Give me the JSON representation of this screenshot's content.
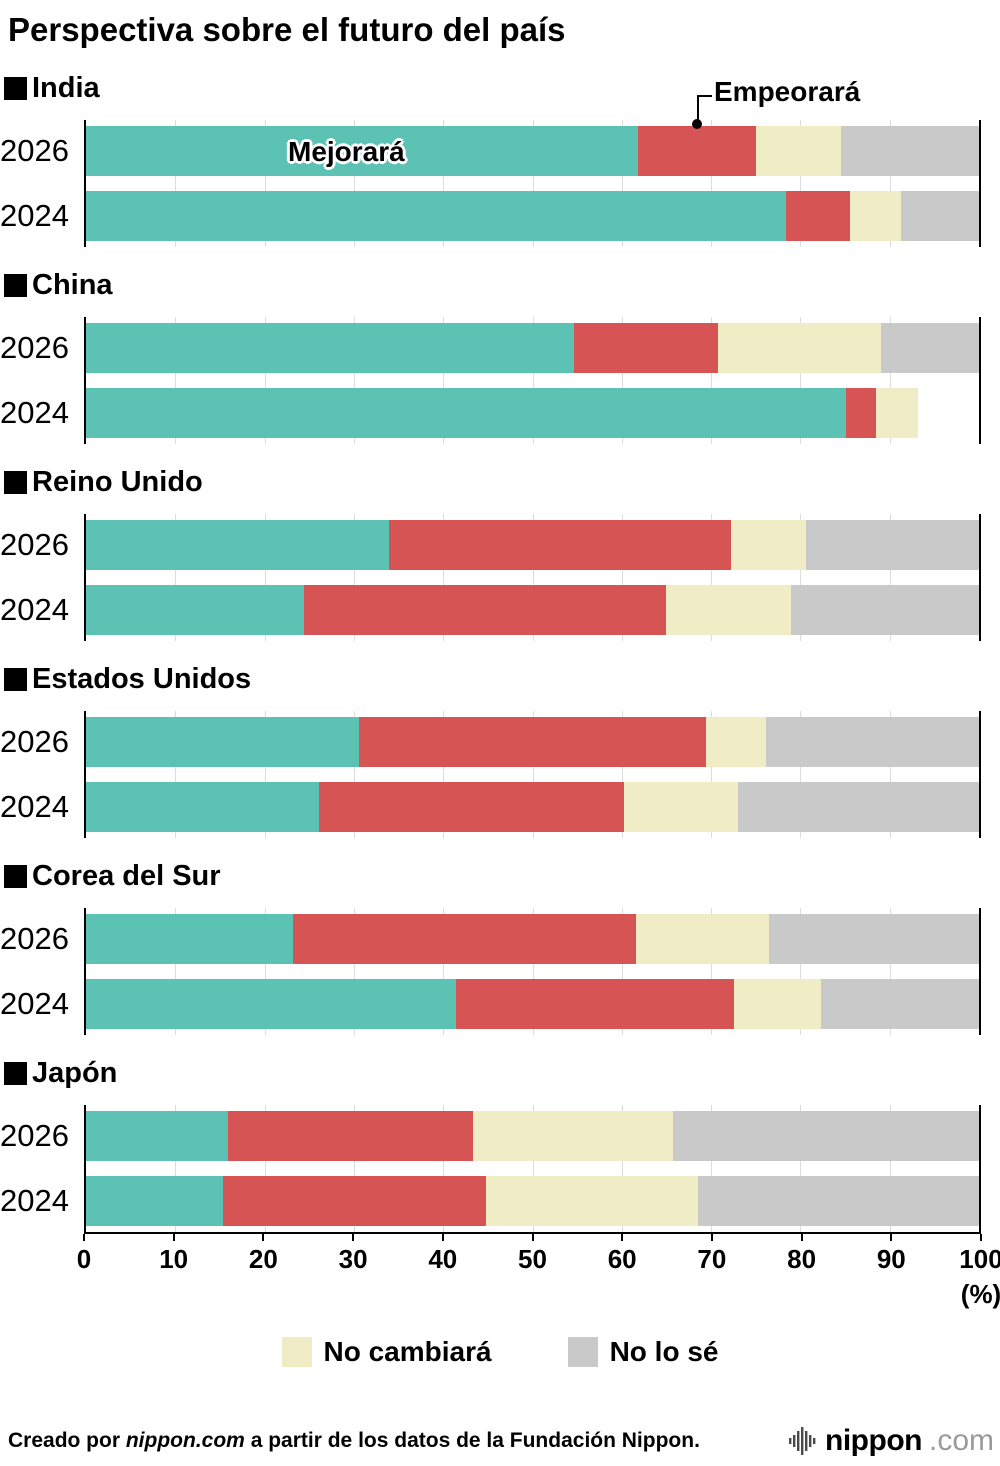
{
  "title": "Perspectiva sobre el futuro del país",
  "annotations": {
    "improve_label": "Mejorará",
    "worsen_label": "Empeorará"
  },
  "legend": [
    {
      "label": "No cambiará",
      "color": "#f0edc6"
    },
    {
      "label": "No lo sé",
      "color": "#c9c9c9"
    }
  ],
  "axis": {
    "ticks": [
      0,
      10,
      20,
      30,
      40,
      50,
      60,
      70,
      80,
      90,
      100
    ],
    "unit_label": "(%)"
  },
  "colors": {
    "improve": "#5cc3b4",
    "worsen": "#d75454",
    "no_change": "#f0edc6",
    "unknown": "#c9c9c9",
    "gridline": "#dcdcdc",
    "axis": "#000000"
  },
  "chart_data": {
    "type": "bar",
    "stacked": true,
    "orientation": "horizontal",
    "unit": "%",
    "xlim": [
      0,
      100
    ],
    "title": "Perspectiva sobre el futuro del país",
    "segments": [
      "Mejorará",
      "Empeorará",
      "No cambiará",
      "No lo sé"
    ],
    "segment_keys": [
      "mejorara",
      "empeorara",
      "no-cambiara",
      "no-lo-se"
    ],
    "segment_colors": [
      "#5cc3b4",
      "#d75454",
      "#f0edc6",
      "#c9c9c9"
    ],
    "groups": [
      {
        "country": "India",
        "rows": [
          {
            "year": "2026",
            "values": [
              61.8,
              13.2,
              9.5,
              15.5
            ]
          },
          {
            "year": "2024",
            "values": [
              78.4,
              7.2,
              5.7,
              8.7
            ]
          }
        ]
      },
      {
        "country": "China",
        "rows": [
          {
            "year": "2026",
            "values": [
              54.6,
              16.2,
              18.2,
              11.0
            ]
          },
          {
            "year": "2024",
            "values": [
              85.1,
              3.4,
              4.7,
              0
            ]
          }
        ]
      },
      {
        "country": "Reino Unido",
        "rows": [
          {
            "year": "2026",
            "values": [
              33.9,
              38.3,
              8.4,
              19.4
            ]
          },
          {
            "year": "2024",
            "values": [
              24.4,
              40.6,
              14.0,
              21.0
            ]
          }
        ]
      },
      {
        "country": "Estados Unidos",
        "rows": [
          {
            "year": "2026",
            "values": [
              30.6,
              38.8,
              6.7,
              23.9
            ]
          },
          {
            "year": "2024",
            "values": [
              26.1,
              34.1,
              12.8,
              27.0
            ]
          }
        ]
      },
      {
        "country": "Corea del Sur",
        "rows": [
          {
            "year": "2026",
            "values": [
              23.2,
              38.4,
              14.9,
              23.5
            ]
          },
          {
            "year": "2024",
            "values": [
              41.4,
              31.2,
              9.7,
              17.7
            ]
          }
        ]
      },
      {
        "country": "Japón",
        "rows": [
          {
            "year": "2026",
            "values": [
              15.9,
              27.4,
              22.4,
              34.3
            ]
          },
          {
            "year": "2024",
            "values": [
              15.3,
              29.5,
              23.7,
              31.5
            ]
          }
        ]
      }
    ]
  },
  "footer": {
    "credit_prefix": "Creado por ",
    "credit_source": "nippon.com",
    "credit_suffix": " a partir de los datos de la Fundación Nippon.",
    "logo_text": "nippon",
    "logo_suffix": ".com"
  }
}
